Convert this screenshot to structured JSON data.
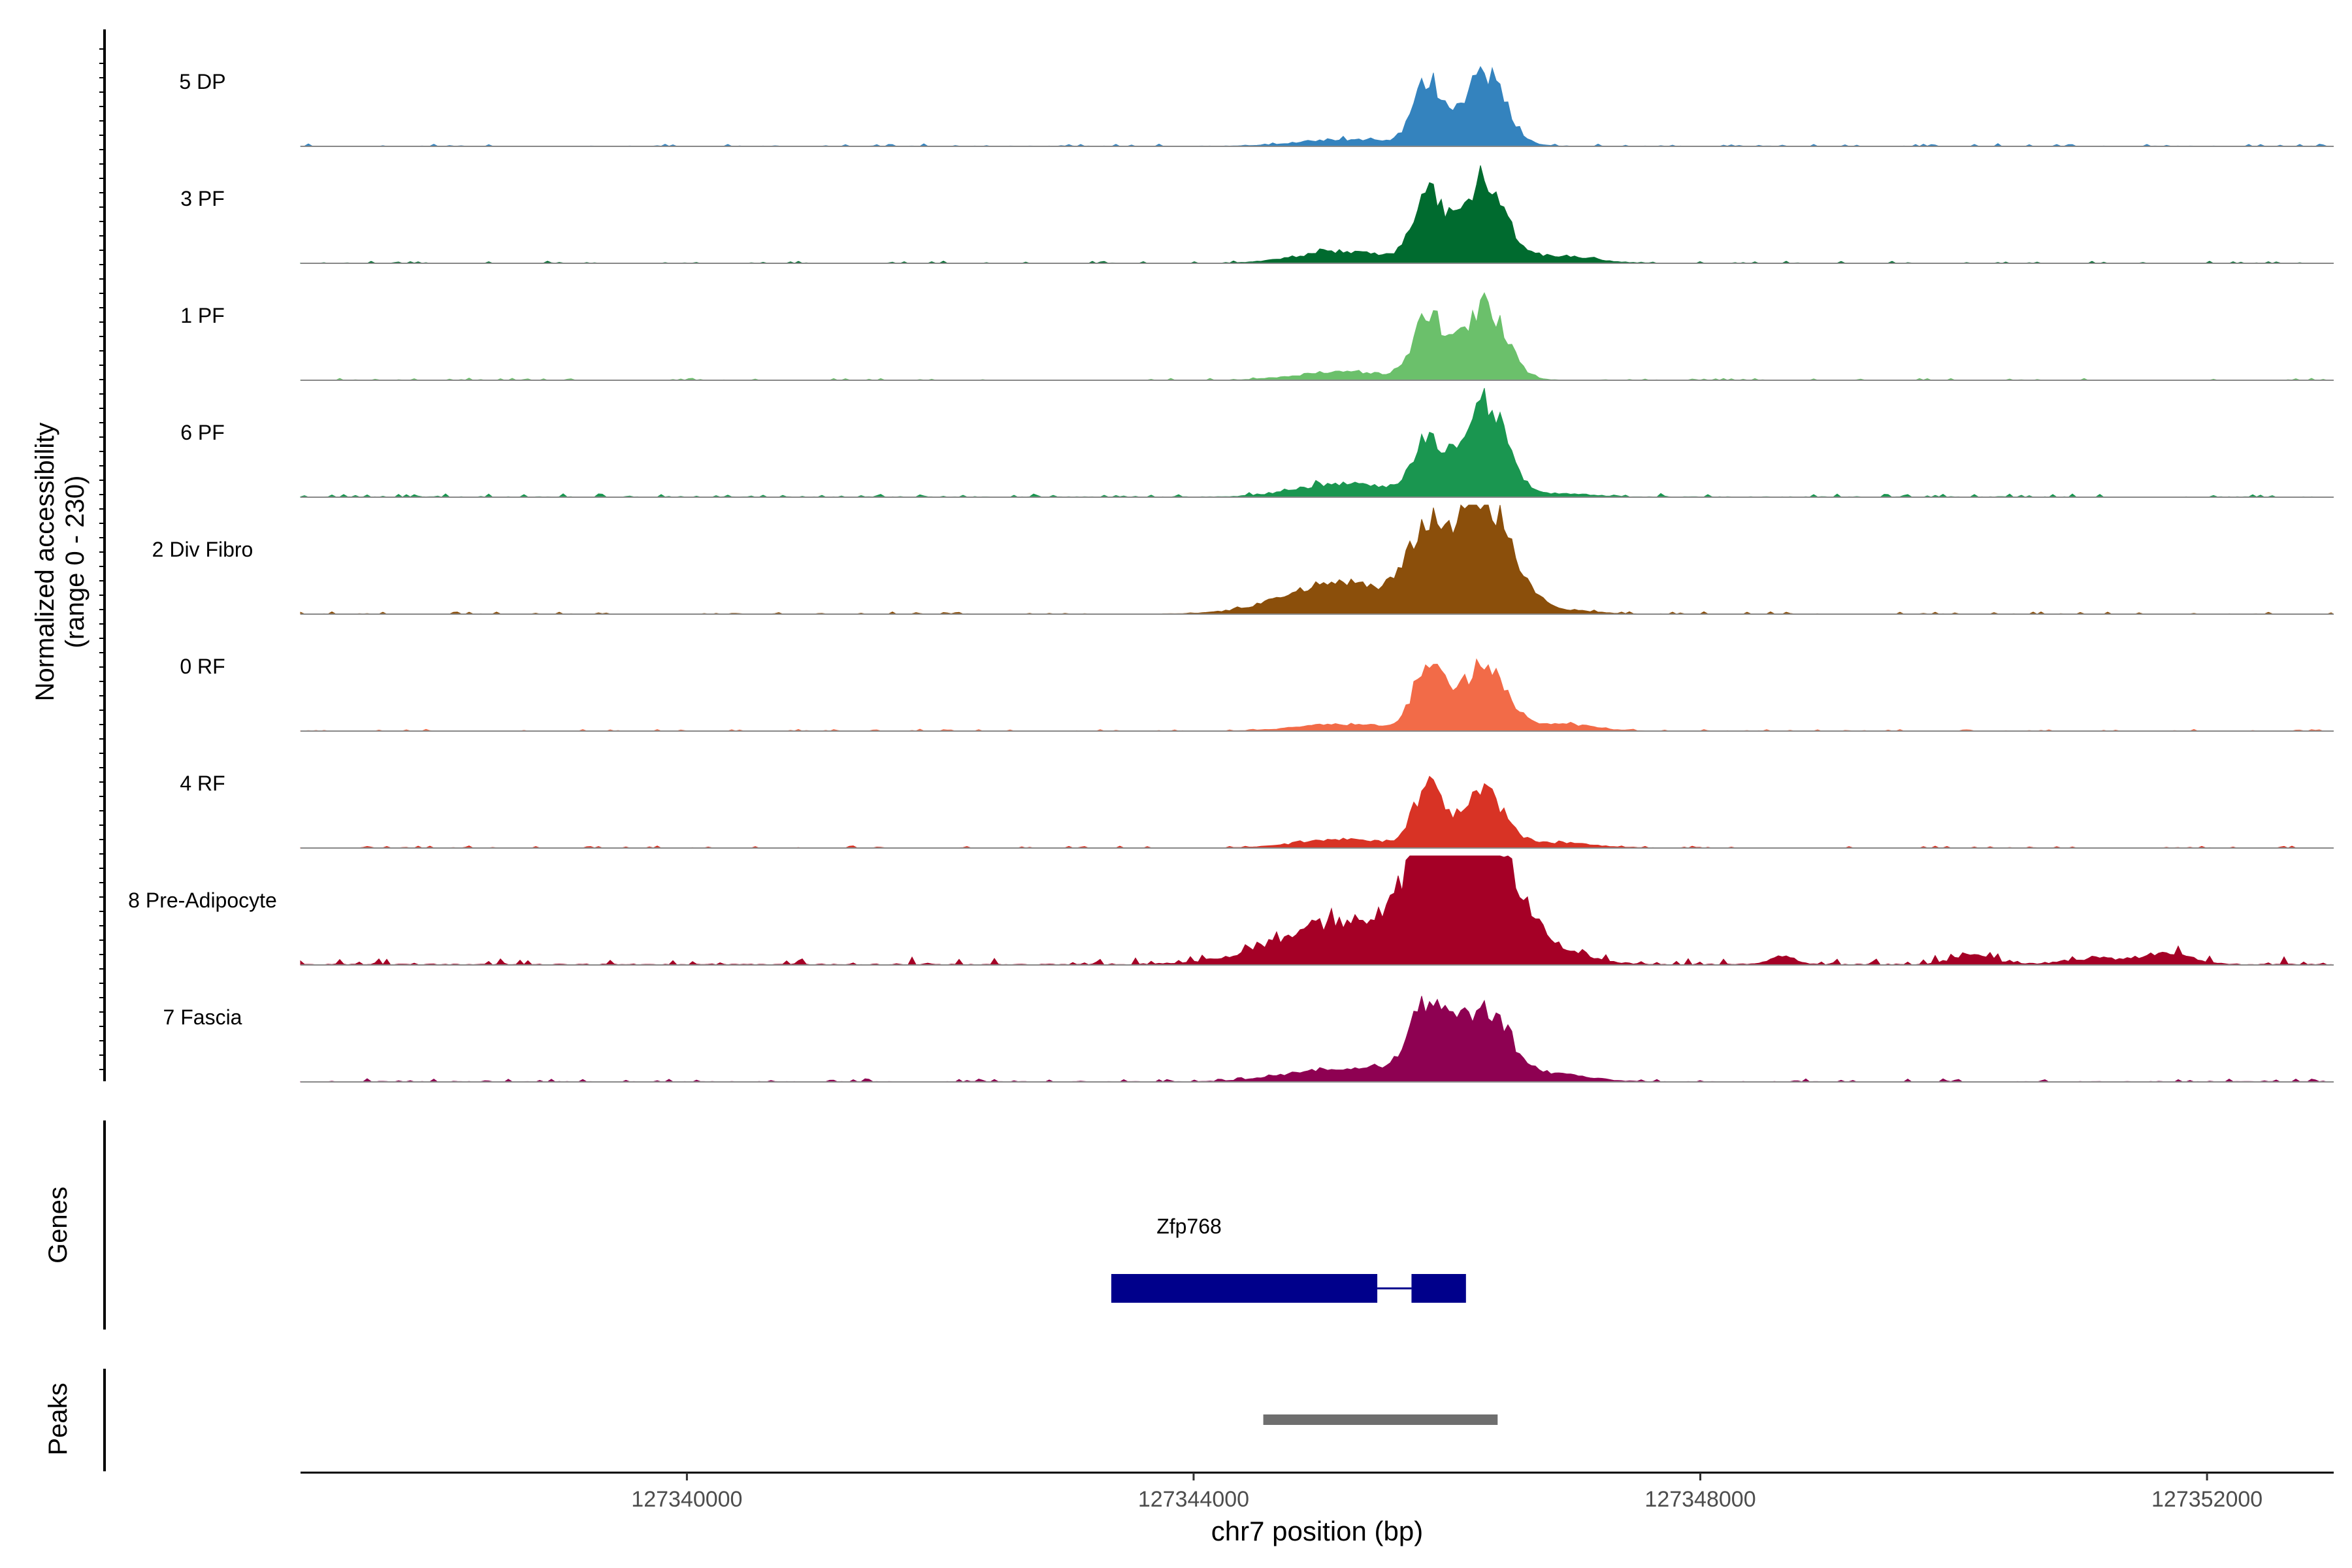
{
  "chart_data": {
    "type": "area",
    "y_axis_label_line1": "Normalized accessibility",
    "y_axis_label_line2": "(range 0 - 230)",
    "y_range": [
      0,
      230
    ],
    "x_axis_label": "chr7 position (bp)",
    "x_range": [
      127336950,
      127353000
    ],
    "x_ticks": [
      {
        "value": 127340000,
        "label": "127340000"
      },
      {
        "value": 127344000,
        "label": "127344000"
      },
      {
        "value": 127348000,
        "label": "127348000"
      },
      {
        "value": 127352000,
        "label": "127352000"
      }
    ],
    "tracks": [
      {
        "name": "5 DP",
        "color": "#3483BE",
        "peak1": 170,
        "peak2": 200,
        "dip": 30,
        "left": 20,
        "right": 0,
        "noise": 8,
        "spread": 1.0
      },
      {
        "name": "3 PF",
        "color": "#006B2F",
        "peak1": 170,
        "peak2": 230,
        "dip": 40,
        "left": 35,
        "right": 22,
        "noise": 6,
        "spread": 1.0
      },
      {
        "name": "1 PF",
        "color": "#6BC06B",
        "peak1": 175,
        "peak2": 205,
        "dip": 30,
        "left": 25,
        "right": 0,
        "noise": 6,
        "spread": 1.0
      },
      {
        "name": "6 PF",
        "color": "#1A9650",
        "peak1": 130,
        "peak2": 260,
        "dip": 55,
        "left": 40,
        "right": 10,
        "noise": 10,
        "spread": 1.0
      },
      {
        "name": "2 Div Fibro",
        "color": "#8B4F0B",
        "peak1": 180,
        "peak2": 310,
        "dip": 55,
        "left": 90,
        "right": 10,
        "noise": 7,
        "spread": 1.3
      },
      {
        "name": "0 RF",
        "color": "#F26B48",
        "peak1": 180,
        "peak2": 190,
        "dip": 30,
        "left": 20,
        "right": 20,
        "noise": 5,
        "spread": 1.0
      },
      {
        "name": "4 RF",
        "color": "#D83325",
        "peak1": 165,
        "peak2": 150,
        "dip": 30,
        "left": 25,
        "right": 15,
        "noise": 6,
        "spread": 1.0
      },
      {
        "name": "8 Pre-Adipocyte",
        "color": "#A50026",
        "peak1": 200,
        "peak2": 320,
        "dip": 120,
        "left": 120,
        "right": 30,
        "noise": 22,
        "spread": 1.5
      },
      {
        "name": "7 Fascia",
        "color": "#8E0152",
        "peak1": 200,
        "peak2": 190,
        "dip": 45,
        "left": 40,
        "right": 20,
        "noise": 9,
        "spread": 1.2
      }
    ],
    "genes_label": "Genes",
    "gene": {
      "name": "Zfp768",
      "color": "#00008B",
      "exons": [
        [
          127343350,
          127345450
        ],
        [
          127345720,
          127346150
        ]
      ],
      "intron": [
        127345450,
        127345720
      ]
    },
    "peaks_label": "Peaks",
    "peaks": [
      {
        "start": 127344550,
        "end": 127346400,
        "color": "#6E6E6E"
      }
    ]
  }
}
